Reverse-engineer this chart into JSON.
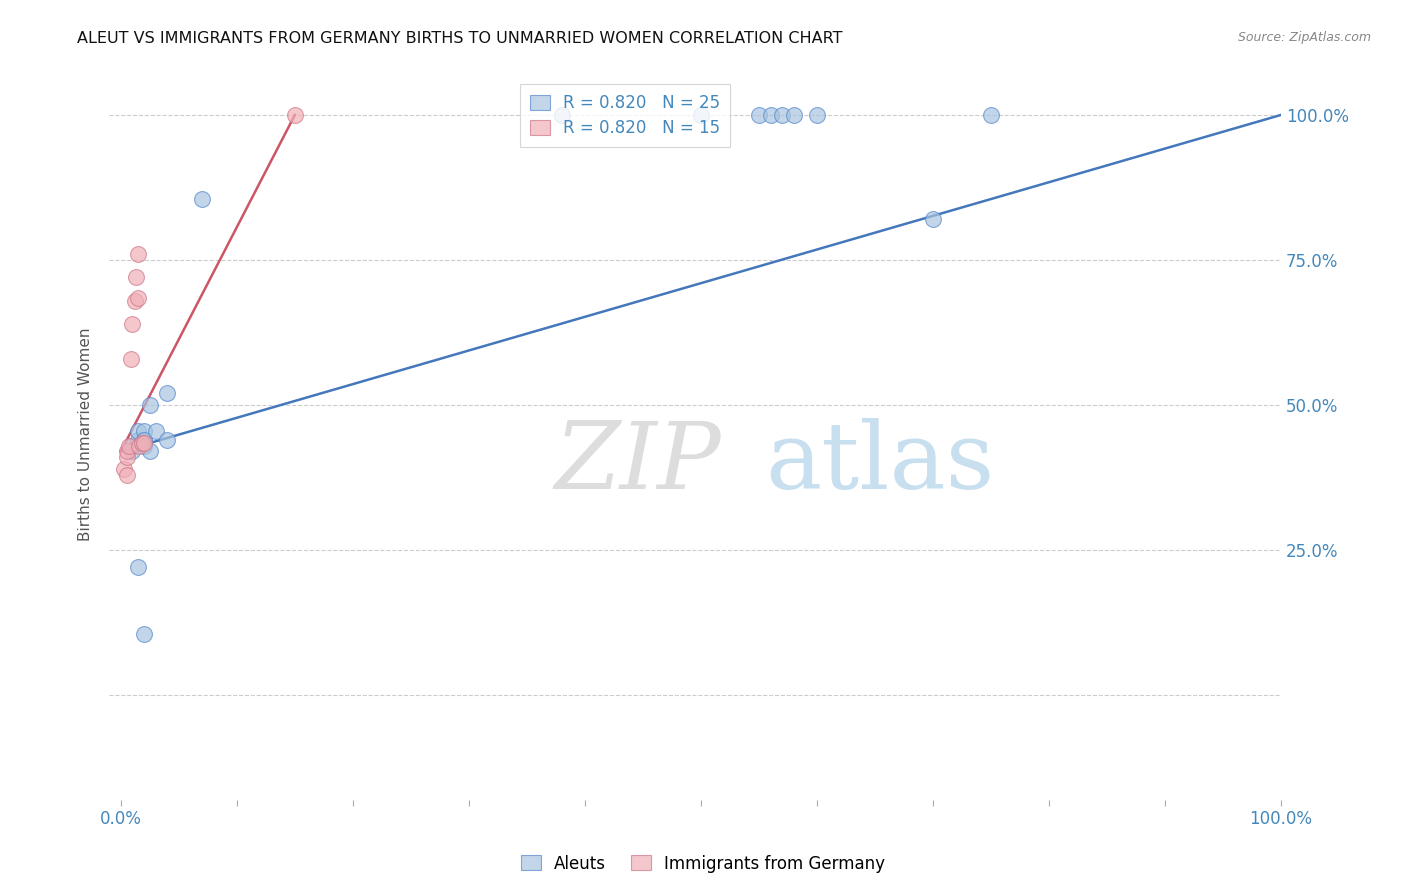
{
  "title": "ALEUT VS IMMIGRANTS FROM GERMANY BIRTHS TO UNMARRIED WOMEN CORRELATION CHART",
  "source": "Source: ZipAtlas.com",
  "ylabel": "Births to Unmarried Women",
  "background_color": "#ffffff",
  "legend_blue_R": "0.820",
  "legend_blue_N": "25",
  "legend_pink_R": "0.820",
  "legend_pink_N": "15",
  "legend_label_blue": "Aleuts",
  "legend_label_pink": "Immigrants from Germany",
  "blue_scatter_x": [
    0.01,
    0.01,
    0.015,
    0.015,
    0.02,
    0.02,
    0.02,
    0.02,
    0.025,
    0.03,
    0.04,
    0.04,
    0.07,
    0.015,
    0.02,
    0.025,
    0.38,
    0.5,
    0.55,
    0.56,
    0.57,
    0.58,
    0.6,
    0.7,
    0.75
  ],
  "blue_scatter_y": [
    0.42,
    0.43,
    0.44,
    0.455,
    0.44,
    0.455,
    0.44,
    0.43,
    0.5,
    0.455,
    0.52,
    0.44,
    0.855,
    0.22,
    0.105,
    0.42,
    1.0,
    1.0,
    1.0,
    1.0,
    1.0,
    1.0,
    1.0,
    0.82,
    1.0
  ],
  "pink_scatter_x": [
    0.003,
    0.005,
    0.005,
    0.005,
    0.007,
    0.009,
    0.01,
    0.012,
    0.013,
    0.015,
    0.015,
    0.016,
    0.018,
    0.02,
    0.15
  ],
  "pink_scatter_y": [
    0.39,
    0.41,
    0.42,
    0.38,
    0.43,
    0.58,
    0.64,
    0.68,
    0.72,
    0.76,
    0.685,
    0.43,
    0.435,
    0.435,
    1.0
  ],
  "blue_line_x0": 0.0,
  "blue_line_y0": 0.42,
  "blue_line_x1": 1.0,
  "blue_line_y1": 1.0,
  "pink_line_x0": 0.0,
  "pink_line_y0": 0.42,
  "pink_line_x1": 0.15,
  "pink_line_y1": 1.0,
  "blue_color": "#a8c4e0",
  "pink_color": "#f0b0b8",
  "blue_edge_color": "#5588cc",
  "pink_edge_color": "#cc7788",
  "blue_line_color": "#4477bb",
  "pink_line_color": "#cc5566",
  "title_color": "#111111",
  "right_axis_color": "#4488bb",
  "grid_color": "#cccccc",
  "ylim_min": -0.18,
  "ylim_max": 1.08,
  "xlim_min": -0.01,
  "xlim_max": 1.0
}
